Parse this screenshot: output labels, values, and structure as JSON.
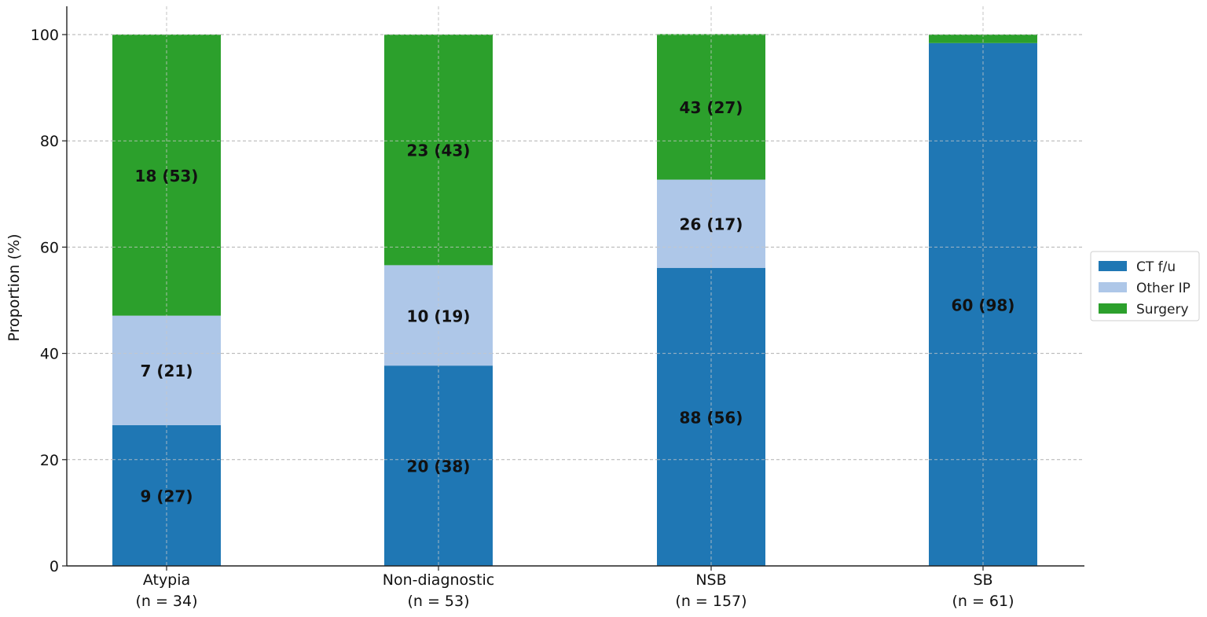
{
  "chart_data": {
    "type": "bar",
    "stacked": true,
    "categories": [
      "Atypia",
      "Non-diagnostic",
      "NSB",
      "SB"
    ],
    "category_counts": [
      "(n = 34)",
      "(n = 53)",
      "(n = 157)",
      "(n = 61)"
    ],
    "ylabel": "Proportion (%)",
    "xlabel": "",
    "ylim": [
      0,
      100
    ],
    "yticks": [
      0,
      20,
      40,
      60,
      80,
      100
    ],
    "grid": true,
    "legend_position": "right",
    "series": [
      {
        "name": "CT f/u",
        "color": "#1f77b4",
        "values": [
          26.5,
          37.7,
          56.1,
          98.4
        ],
        "labels": [
          "9 (27)",
          "20 (38)",
          "88 (56)",
          "60 (98)"
        ]
      },
      {
        "name": "Other IP",
        "color": "#aec7e8",
        "values": [
          20.6,
          18.9,
          16.6,
          0
        ],
        "labels": [
          "7 (21)",
          "10 (19)",
          "26 (17)",
          ""
        ]
      },
      {
        "name": "Surgery",
        "color": "#2ca02c",
        "values": [
          52.9,
          43.4,
          27.4,
          1.6
        ],
        "labels": [
          "18 (53)",
          "23 (43)",
          "43 (27)",
          ""
        ]
      }
    ]
  }
}
